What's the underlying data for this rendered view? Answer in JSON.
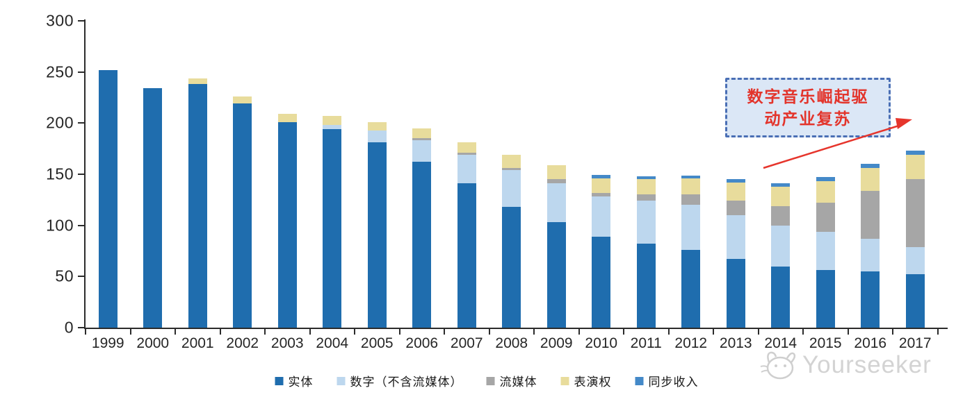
{
  "annotation": {
    "line1": "数字音乐崛起驱",
    "line2": "动产业复苏",
    "text_color": "#e3342b",
    "border_color": "#4a6fb5",
    "fill_color": "#dbe7f6",
    "arrow_color": "#e6352c"
  },
  "watermark": {
    "brand": "Yourseeker",
    "logo": "cat-logo-icon",
    "color": "#cccccc"
  },
  "chart_data": {
    "type": "bar",
    "stacked": true,
    "title": "",
    "xlabel": "",
    "ylabel": "",
    "ylim": [
      0,
      300
    ],
    "yticks": [
      0,
      50,
      100,
      150,
      200,
      250,
      300
    ],
    "grid": false,
    "legend_position": "bottom",
    "categories": [
      "1999",
      "2000",
      "2001",
      "2002",
      "2003",
      "2004",
      "2005",
      "2006",
      "2007",
      "2008",
      "2009",
      "2010",
      "2011",
      "2012",
      "2013",
      "2014",
      "2015",
      "2016",
      "2017"
    ],
    "series": [
      {
        "name": "实体",
        "key": "physical",
        "color": "#1f6dae",
        "values": [
          252,
          234,
          238,
          219,
          201,
          194,
          181,
          162,
          141,
          118,
          103,
          89,
          82,
          76,
          67,
          60,
          56,
          55,
          52
        ]
      },
      {
        "name": "数字（不含流媒体）",
        "key": "digital-excl-streaming",
        "color": "#bdd7ee",
        "values": [
          0,
          0,
          0,
          0,
          0,
          4,
          12,
          21,
          28,
          36,
          38,
          39,
          42,
          44,
          43,
          40,
          38,
          32,
          27
        ]
      },
      {
        "name": "流媒体",
        "key": "streaming",
        "color": "#a6a6a6",
        "values": [
          0,
          0,
          0,
          0,
          0,
          0,
          0,
          2,
          2,
          2,
          4,
          4,
          6,
          10,
          14,
          19,
          28,
          47,
          66
        ]
      },
      {
        "name": "表演权",
        "key": "performance-rights",
        "color": "#e8dc9c",
        "values": [
          0,
          0,
          6,
          7,
          8,
          9,
          8,
          10,
          10,
          13,
          14,
          14,
          15,
          16,
          18,
          19,
          21,
          22,
          24
        ]
      },
      {
        "name": "同步收入",
        "key": "sync-revenue",
        "color": "#4489c8",
        "values": [
          0,
          0,
          0,
          0,
          0,
          0,
          0,
          0,
          0,
          0,
          0,
          3,
          3,
          3,
          3,
          3,
          4,
          4,
          4
        ]
      }
    ]
  }
}
